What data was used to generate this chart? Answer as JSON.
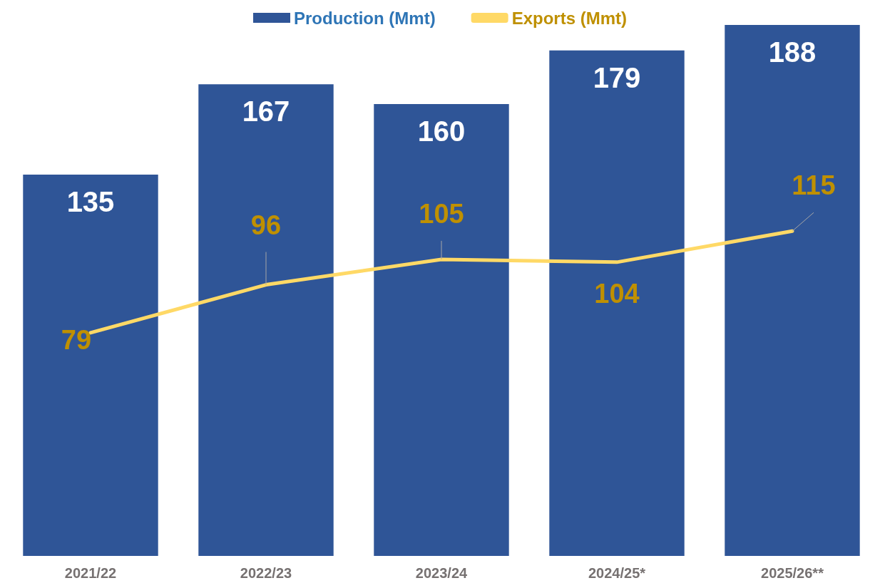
{
  "chart_data": {
    "type": "bar",
    "categories": [
      "2021/22",
      "2022/23",
      "2023/24",
      "2024/25*",
      "2025/26**"
    ],
    "series": [
      {
        "name": "Production (Mmt)",
        "color": "#2f5597",
        "values": [
          135,
          167,
          160,
          179,
          188
        ]
      },
      {
        "name": "Exports (Mmt)",
        "type": "line",
        "color": "#ffd966",
        "values": [
          79,
          96,
          105,
          104,
          115
        ]
      }
    ],
    "ylim": [
      0,
      188
    ],
    "data_labels": true,
    "legend": "top",
    "tick_labels": "x",
    "marker": "none"
  }
}
